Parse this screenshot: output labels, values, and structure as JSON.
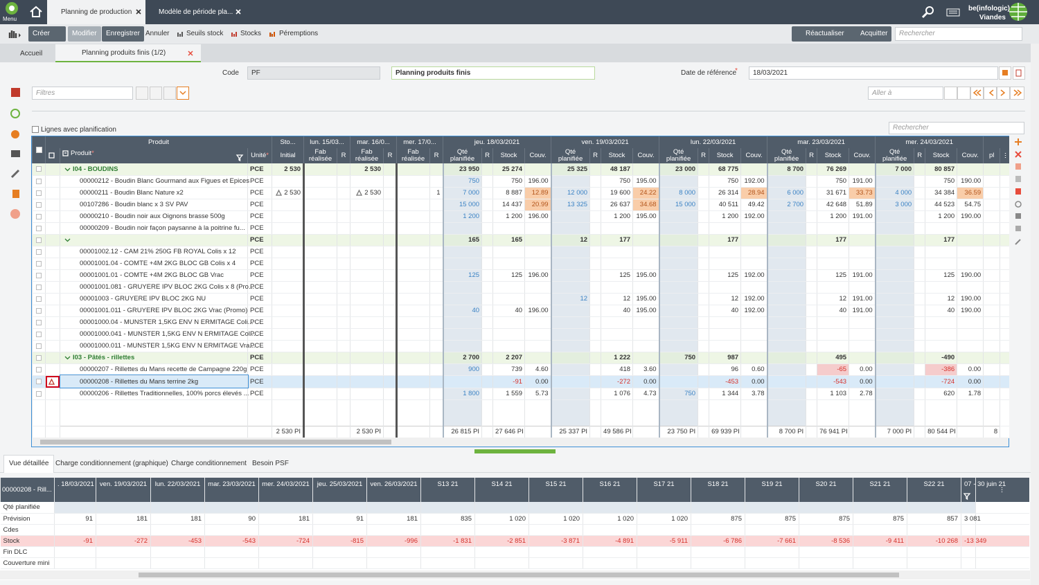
{
  "topbar": {
    "menu": "Menu",
    "tabs": [
      "Planning de production",
      "Modèle de période pla..."
    ],
    "user": "be(infologic)",
    "site": "Viandes"
  },
  "toolbar": {
    "buttons": [
      "Créer",
      "Modifier",
      "Enregistrer",
      "Annuler",
      "Seuils stock",
      "Stocks",
      "Péremptions"
    ],
    "right_buttons": [
      "Réactualiser",
      "Acquitter"
    ],
    "search": "Rechercher"
  },
  "breadcrumb": {
    "home": "Accueil",
    "current": "Planning produits finis (1/2)"
  },
  "form": {
    "code_label": "Code",
    "code": "PF",
    "name": "Planning produits finis",
    "date_label": "Date de référence",
    "required": "*",
    "date": "18/03/2021"
  },
  "filters": {
    "filter": "Filtres",
    "goto": "Aller à",
    "search": "Rechercher",
    "option": "Lignes avec planification"
  },
  "grid": {
    "required": "*",
    "header_top": [
      "Produit",
      "Sto...",
      "lun. 15/03...",
      "mar. 16/0...",
      "mer. 17/0...",
      "jeu. 18/03/2021",
      "ven. 19/03/2021",
      "lun. 22/03/2021",
      "mar. 23/03/2021",
      "mer. 24/03/2021"
    ],
    "header_sub": [
      "Produit",
      "Unité",
      "Initial",
      "Fab réalisée",
      "R",
      "Fab réalisée",
      "R",
      "Fab réalisée",
      "R",
      "Qté planifiée",
      "R",
      "Stock",
      "Couv.",
      "Qté planifiée",
      "R",
      "Stock",
      "Couv.",
      "Qté planifiée",
      "R",
      "Stock",
      "Couv.",
      "Qté planifiée",
      "R",
      "Stock",
      "Couv.",
      "Qté planifiée",
      "R",
      "Stock",
      "Couv.",
      "pl"
    ],
    "rows": [
      {
        "type": "group",
        "cells": [
          "I04 - BOUDINS",
          "PCE",
          "2 530",
          null,
          null,
          "2 530",
          null,
          null,
          null,
          "23 950",
          null,
          "25 274",
          null,
          "25 325",
          null,
          "48 187",
          null,
          "23 000",
          null,
          "68 775",
          null,
          "8 700",
          null,
          "76 269",
          null,
          "7 000",
          null,
          "80 857",
          null,
          null
        ]
      },
      {
        "type": "item",
        "cells": [
          "00000212 - Boudin Blanc Gourmand aux Figues et Epices",
          "PCE",
          null,
          null,
          null,
          null,
          null,
          null,
          null,
          "750",
          null,
          "750",
          "196.00",
          null,
          null,
          "750",
          "195.00",
          null,
          null,
          "750",
          "192.00",
          null,
          null,
          "750",
          "191.00",
          null,
          null,
          "750",
          "190.00",
          null
        ]
      },
      {
        "type": "item",
        "cells": [
          "00000211 - Boudin Blanc Nature x2",
          "PCE",
          {
            "text": "2 530",
            "icon": "warning"
          },
          null,
          null,
          {
            "text": "2 530",
            "icon": "warning"
          },
          null,
          null,
          "1",
          "7 000",
          null,
          "8 887",
          {
            "text": "12.89",
            "status": "warning"
          },
          "12 000",
          null,
          "19 600",
          {
            "text": "24.22",
            "status": "warning"
          },
          "8 000",
          null,
          "26 314",
          {
            "text": "28.94",
            "status": "warning"
          },
          "6 000",
          null,
          "31 671",
          {
            "text": "33.73",
            "status": "warning"
          },
          "4 000",
          null,
          "34 384",
          {
            "text": "36.59",
            "status": "warning"
          },
          null
        ]
      },
      {
        "type": "item",
        "cells": [
          "00107286 - Boudin blanc x 3 SV PAV",
          "PCE",
          null,
          null,
          null,
          null,
          null,
          null,
          null,
          "15 000",
          null,
          "14 437",
          {
            "text": "20.99",
            "status": "warning"
          },
          "13 325",
          null,
          "26 637",
          {
            "text": "34.68",
            "status": "warning"
          },
          "15 000",
          null,
          "40 511",
          "49.42",
          "2 700",
          null,
          "42 648",
          "51.89",
          "3 000",
          null,
          "44 523",
          "54.75",
          null
        ]
      },
      {
        "type": "item",
        "cells": [
          "00000210 - Boudin noir aux Oignons brasse 500g",
          "PCE",
          null,
          null,
          null,
          null,
          null,
          null,
          null,
          "1 200",
          null,
          "1 200",
          "196.00",
          null,
          null,
          "1 200",
          "195.00",
          null,
          null,
          "1 200",
          "192.00",
          null,
          null,
          "1 200",
          "191.00",
          null,
          null,
          "1 200",
          "190.00",
          null
        ]
      },
      {
        "type": "item",
        "cells": [
          "00000209 - Boudin noir façon paysanne à la poitrine fu...",
          "PCE",
          null,
          null,
          null,
          null,
          null,
          null,
          null,
          null,
          null,
          null,
          null,
          null,
          null,
          null,
          null,
          null,
          null,
          null,
          null,
          null,
          null,
          null,
          null,
          null,
          null,
          null,
          null,
          null
        ]
      },
      {
        "type": "group",
        "cells": [
          null,
          "PCE",
          null,
          null,
          null,
          null,
          null,
          null,
          null,
          "165",
          null,
          "165",
          null,
          "12",
          null,
          "177",
          null,
          null,
          null,
          "177",
          null,
          null,
          null,
          "177",
          null,
          null,
          null,
          "177",
          null,
          null
        ]
      },
      {
        "type": "item",
        "cells": [
          "00001002.12 - CAM 21% 250G FB ROYAL Colis x 12",
          "PCE",
          null,
          null,
          null,
          null,
          null,
          null,
          null,
          null,
          null,
          null,
          null,
          null,
          null,
          null,
          null,
          null,
          null,
          null,
          null,
          null,
          null,
          null,
          null,
          null,
          null,
          null,
          null,
          null
        ]
      },
      {
        "type": "item",
        "cells": [
          "00001001.04 - COMTE +4M 2KG BLOC GB Colis x 4",
          "PCE",
          null,
          null,
          null,
          null,
          null,
          null,
          null,
          null,
          null,
          null,
          null,
          null,
          null,
          null,
          null,
          null,
          null,
          null,
          null,
          null,
          null,
          null,
          null,
          null,
          null,
          null,
          null,
          null
        ]
      },
      {
        "type": "item",
        "cells": [
          "00001001.01 - COMTE +4M 2KG BLOC GB Vrac",
          "PCE",
          null,
          null,
          null,
          null,
          null,
          null,
          null,
          "125",
          null,
          "125",
          "196.00",
          null,
          null,
          "125",
          "195.00",
          null,
          null,
          "125",
          "192.00",
          null,
          null,
          "125",
          "191.00",
          null,
          null,
          "125",
          "190.00",
          null
        ]
      },
      {
        "type": "item",
        "cells": [
          "00001001.081 - GRUYERE IPV BLOC 2KG Colis x 8 (Pro...",
          "PCE",
          null,
          null,
          null,
          null,
          null,
          null,
          null,
          null,
          null,
          null,
          null,
          null,
          null,
          null,
          null,
          null,
          null,
          null,
          null,
          null,
          null,
          null,
          null,
          null,
          null,
          null,
          null,
          null
        ]
      },
      {
        "type": "item",
        "cells": [
          "00001003 - GRUYERE IPV BLOC 2KG NU",
          "PCE",
          null,
          null,
          null,
          null,
          null,
          null,
          null,
          null,
          null,
          null,
          null,
          "12",
          null,
          "12",
          "195.00",
          null,
          null,
          "12",
          "192.00",
          null,
          null,
          "12",
          "191.00",
          null,
          null,
          "12",
          "190.00",
          null
        ]
      },
      {
        "type": "item",
        "cells": [
          "00001001.011 - GRUYERE IPV BLOC 2KG Vrac (Promo)",
          "PCE",
          null,
          null,
          null,
          null,
          null,
          null,
          null,
          "40",
          null,
          "40",
          "196.00",
          null,
          null,
          "40",
          "195.00",
          null,
          null,
          "40",
          "192.00",
          null,
          null,
          "40",
          "191.00",
          null,
          null,
          "40",
          "190.00",
          null
        ]
      },
      {
        "type": "item",
        "cells": [
          "00001000.04 - MUNSTER 1,5KG ENV N ERMITAGE Coli...",
          "PCE",
          null,
          null,
          null,
          null,
          null,
          null,
          null,
          null,
          null,
          null,
          null,
          null,
          null,
          null,
          null,
          null,
          null,
          null,
          null,
          null,
          null,
          null,
          null,
          null,
          null,
          null,
          null,
          null
        ]
      },
      {
        "type": "item",
        "cells": [
          "00001000.041 - MUNSTER 1,5KG ENV N ERMITAGE Col...",
          "PCE",
          null,
          null,
          null,
          null,
          null,
          null,
          null,
          null,
          null,
          null,
          null,
          null,
          null,
          null,
          null,
          null,
          null,
          null,
          null,
          null,
          null,
          null,
          null,
          null,
          null,
          null,
          null,
          null
        ]
      },
      {
        "type": "item",
        "cells": [
          "00001000.011 - MUNSTER 1,5KG ENV N ERMITAGE Vra...",
          "PCE",
          null,
          null,
          null,
          null,
          null,
          null,
          null,
          null,
          null,
          null,
          null,
          null,
          null,
          null,
          null,
          null,
          null,
          null,
          null,
          null,
          null,
          null,
          null,
          null,
          null,
          null,
          null,
          null
        ]
      },
      {
        "type": "group",
        "cells": [
          "I03 - Pâtés - rillettes",
          "PCE",
          null,
          null,
          null,
          null,
          null,
          null,
          null,
          "2 700",
          null,
          "2 207",
          null,
          null,
          null,
          "1 222",
          null,
          "750",
          null,
          "987",
          null,
          null,
          null,
          "495",
          null,
          null,
          null,
          "-490",
          null,
          null
        ]
      },
      {
        "type": "item",
        "cells": [
          "00000207 - Rillettes du Mans recette de Campagne 220g",
          "PCE",
          null,
          null,
          null,
          null,
          null,
          null,
          null,
          "900",
          null,
          "739",
          "4.60",
          null,
          null,
          "418",
          "3.60",
          null,
          null,
          "96",
          "0.60",
          null,
          null,
          "-65",
          "0.00",
          null,
          null,
          "-386",
          "0.00",
          null
        ]
      },
      {
        "type": "item",
        "selected": true,
        "alert": true,
        "cells": [
          "00000208 - Rillettes du Mans terrine 2kg",
          "PCE",
          null,
          null,
          null,
          null,
          null,
          null,
          null,
          null,
          null,
          "-91",
          "0.00",
          null,
          null,
          "-272",
          "0.00",
          null,
          null,
          "-453",
          "0.00",
          null,
          null,
          "-543",
          "0.00",
          null,
          null,
          "-724",
          "0.00",
          null
        ]
      },
      {
        "type": "item",
        "cells": [
          "00000206 - Rillettes Traditionnelles, 100% porcs élevés ...",
          "PCE",
          null,
          null,
          null,
          null,
          null,
          null,
          null,
          "1 800",
          null,
          "1 559",
          "5.73",
          null,
          null,
          "1 076",
          "4.73",
          "750",
          null,
          "1 344",
          "3.78",
          null,
          null,
          "1 103",
          "2.78",
          null,
          null,
          "620",
          "1.78",
          null
        ]
      }
    ],
    "totals": [
      null,
      null,
      "2 530 PI",
      null,
      null,
      "2 530 PI",
      null,
      null,
      null,
      "26 815 PI",
      null,
      "27 646 PI",
      null,
      "25 337 PI",
      null,
      "49 586 PI",
      null,
      "23 750 PI",
      null,
      "69 939 PI",
      null,
      "8 700 PI",
      null,
      "76 941 PI",
      null,
      "7 000 PI",
      null,
      "80 544 PI",
      null,
      "8"
    ]
  },
  "bottom_tabs": [
    "Vue détaillée",
    "Charge conditionnement (graphique)",
    "Charge conditionnement",
    "Besoin PSF"
  ],
  "detail": {
    "product": "00000208 - Rill...",
    "columns": [
      ". 18/03/2021",
      "ven. 19/03/2021",
      "lun. 22/03/2021",
      "mar. 23/03/2021",
      "mer. 24/03/2021",
      "jeu. 25/03/2021",
      "ven. 26/03/2021",
      "S13 21",
      "S14 21",
      "S15 21",
      "S16 21",
      "S17 21",
      "S18 21",
      "S19 21",
      "S20 21",
      "S21 21",
      "S22 21",
      "07 - 30 juin 21"
    ],
    "rows": [
      {
        "label": "Qté planifiée"
      },
      {
        "label": "Prévision",
        "values": [
          "91",
          "181",
          "181",
          "90",
          "181",
          "91",
          "181",
          "835",
          "1 020",
          "1 020",
          "1 020",
          "1 020",
          "875",
          "875",
          "875",
          "875",
          "857",
          "3 081"
        ]
      },
      {
        "label": "Cdes"
      },
      {
        "label": "Stock",
        "values": [
          "-91",
          "-272",
          "-453",
          "-543",
          "-724",
          "-815",
          "-996",
          "-1 831",
          "-2 851",
          "-3 871",
          "-4 891",
          "-5 911",
          "-6 786",
          "-7 661",
          "-8 536",
          "-9 411",
          "-10 268",
          "-13 349"
        ]
      },
      {
        "label": "Fin DLC"
      },
      {
        "label": "Couverture mini"
      }
    ]
  }
}
